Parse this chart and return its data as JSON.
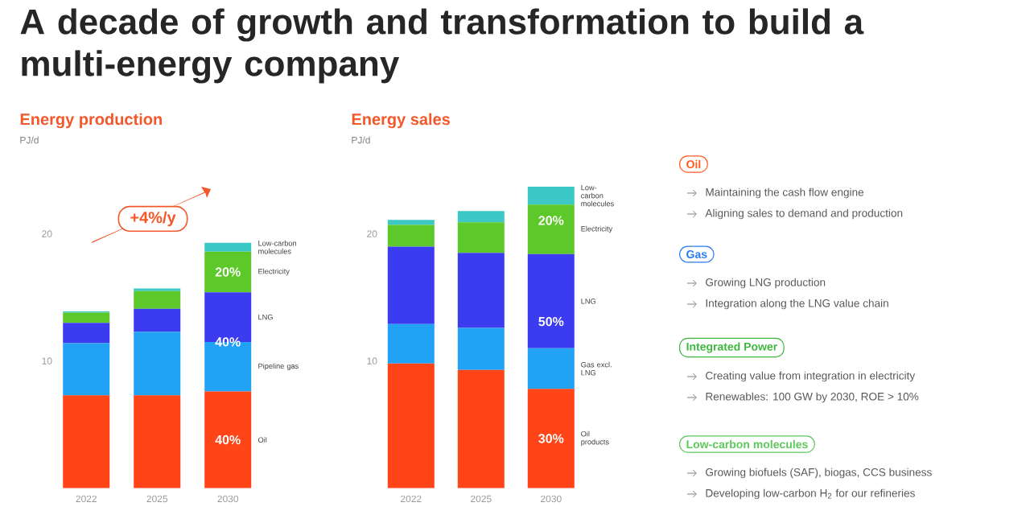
{
  "chart_data": [
    {
      "type": "bar",
      "stacked": true,
      "title": "Energy production",
      "subtitle": "PJ/d",
      "categories": [
        "2022",
        "2025",
        "2030"
      ],
      "ylim": [
        0,
        20
      ],
      "yticks": [
        10,
        20
      ],
      "series": [
        {
          "name": "Oil",
          "color": "#ff4418",
          "values": [
            7.3,
            7.3,
            7.6
          ]
        },
        {
          "name": "Pipeline gas",
          "color": "#22a2f5",
          "values": [
            4.1,
            5.0,
            3.9
          ]
        },
        {
          "name": "LNG",
          "color": "#3b3cf0",
          "values": [
            1.6,
            1.8,
            3.9
          ]
        },
        {
          "name": "Electricity",
          "color": "#5cc82a",
          "values": [
            0.8,
            1.4,
            3.2
          ]
        },
        {
          "name": "Low-carbon molecules",
          "color": "#3cc8c4",
          "values": [
            0.1,
            0.2,
            0.7
          ]
        }
      ],
      "annotations": [
        "+4%/y",
        "40%",
        "40%",
        "20%"
      ]
    },
    {
      "type": "bar",
      "stacked": true,
      "title": "Energy sales",
      "subtitle": "PJ/d",
      "categories": [
        "2022",
        "2025",
        "2030"
      ],
      "ylim": [
        0,
        24
      ],
      "yticks": [
        10,
        20
      ],
      "series": [
        {
          "name": "Oil products",
          "color": "#ff4418",
          "values": [
            9.8,
            9.3,
            7.8
          ]
        },
        {
          "name": "Gas excl. LNG",
          "color": "#22a2f5",
          "values": [
            3.1,
            3.3,
            3.2
          ]
        },
        {
          "name": "LNG",
          "color": "#3b3cf0",
          "values": [
            6.1,
            5.9,
            7.4
          ]
        },
        {
          "name": "Electricity",
          "color": "#5cc82a",
          "values": [
            1.7,
            2.4,
            3.9
          ]
        },
        {
          "name": "Low-carbon molecules",
          "color": "#3cc8c4",
          "values": [
            0.4,
            0.9,
            1.4
          ]
        }
      ],
      "annotations": [
        "30%",
        "50%",
        "20%"
      ]
    },
    {
      "type": "other",
      "title": "A decade of growth and transformation to build a multi-energy company",
      "colors": [
        "#ff5a1e",
        "#2a7af0",
        "#3cb83c",
        "#5cc85a"
      ],
      "annotations": [
        "Oil",
        "Maintaining the cash flow engine",
        "Aligning sales to demand and production",
        "Gas",
        "Growing LNG production",
        "Integration along the LNG value chain",
        "Integrated Power",
        "Creating value from integration in electricity",
        "Renewables: 100 GW by 2030, ROE > 10%",
        "Low-carbon molecules",
        "Growing biofuels (SAF), biogas, CCS business",
        "Developing low-carbon H$_{2}$ for our refineries"
      ]
    }
  ]
}
